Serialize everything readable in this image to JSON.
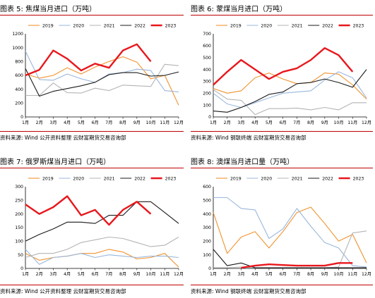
{
  "colors": {
    "2019": "#f0922e",
    "2020": "#9ab7db",
    "2021": "#b4b4b4",
    "2022": "#1a1a1a",
    "2023": "#e8171c",
    "title_rule": "#c00000"
  },
  "chart_data": [
    {
      "type": "line",
      "title": "图表 5:  焦煤当月进口（万吨）",
      "source": "资料来源:  Wind 公开资料整理 云财富期货交易咨询部",
      "categories": [
        "1月",
        "2月",
        "3月",
        "4月",
        "5月",
        "6月",
        "7月",
        "8月",
        "9月",
        "10月",
        "11月",
        "12月"
      ],
      "ylim": [
        0,
        1200
      ],
      "yticks": [
        0,
        200,
        400,
        600,
        800,
        1000,
        1200
      ],
      "series": [
        {
          "name": "2019",
          "values": [
            620,
            560,
            600,
            710,
            620,
            720,
            800,
            870,
            790,
            550,
            600,
            170
          ]
        },
        {
          "name": "2020",
          "values": [
            950,
            540,
            530,
            620,
            550,
            500,
            620,
            640,
            690,
            670,
            380,
            360
          ]
        },
        {
          "name": "2021",
          "values": [
            310,
            310,
            490,
            350,
            345,
            415,
            380,
            460,
            450,
            440,
            760,
            740
          ]
        },
        {
          "name": "2022",
          "values": [
            700,
            300,
            370,
            410,
            450,
            500,
            610,
            640,
            640,
            590,
            600,
            650
          ]
        },
        {
          "name": "2023",
          "values": [
            600,
            680,
            960,
            840,
            670,
            770,
            710,
            960,
            1050,
            800,
            null,
            null
          ]
        }
      ]
    },
    {
      "type": "line",
      "title": "图表 6:  蒙煤当月进口（万吨）",
      "source": "资料来源:  Wind 钢联终端 云财富期货交易咨询部",
      "categories": [
        "1月",
        "2月",
        "3月",
        "4月",
        "5月",
        "6月",
        "7月",
        "8月",
        "9月",
        "10月",
        "11月",
        "12月"
      ],
      "ylim": [
        0,
        700
      ],
      "yticks": [
        0,
        100,
        200,
        300,
        400,
        500,
        600,
        700
      ],
      "series": [
        {
          "name": "2019",
          "values": [
            240,
            200,
            220,
            330,
            370,
            320,
            280,
            290,
            370,
            360,
            270,
            150
          ]
        },
        {
          "name": "2020",
          "values": [
            200,
            110,
            80,
            120,
            160,
            200,
            210,
            220,
            310,
            380,
            330,
            160
          ]
        },
        {
          "name": "2021",
          "values": [
            230,
            150,
            140,
            20,
            70,
            70,
            75,
            60,
            80,
            60,
            120,
            120
          ]
        },
        {
          "name": "2022",
          "values": [
            50,
            40,
            80,
            130,
            190,
            210,
            280,
            290,
            320,
            290,
            250,
            400
          ]
        },
        {
          "name": "2023",
          "values": [
            270,
            380,
            480,
            400,
            320,
            380,
            410,
            480,
            580,
            520,
            380,
            null
          ]
        }
      ]
    },
    {
      "type": "line",
      "title": "图表 7:  俄罗斯煤当月进口（万吨）",
      "source": "资料来源:  Wind 公开资料整理 云财富期货交易咨询部",
      "categories": [
        "1月",
        "2月",
        "3月",
        "4月",
        "5月",
        "6月",
        "7月",
        "8月",
        "9月",
        "10月",
        "11月",
        "12月"
      ],
      "ylim": [
        0,
        300
      ],
      "yticks": [
        0,
        50,
        100,
        150,
        200,
        250,
        300
      ],
      "series": [
        {
          "name": "2019",
          "values": [
            55,
            30,
            40,
            45,
            55,
            55,
            70,
            60,
            35,
            40,
            55,
            5
          ]
        },
        {
          "name": "2020",
          "values": [
            70,
            15,
            40,
            45,
            55,
            40,
            50,
            45,
            40,
            45,
            45,
            40
          ]
        },
        {
          "name": "2021",
          "values": [
            40,
            55,
            55,
            70,
            95,
            105,
            115,
            110,
            95,
            80,
            85,
            115
          ]
        },
        {
          "name": "2022",
          "values": [
            100,
            125,
            145,
            170,
            170,
            165,
            195,
            195,
            245,
            245,
            205,
            165
          ]
        },
        {
          "name": "2023",
          "values": [
            235,
            200,
            225,
            265,
            195,
            215,
            160,
            215,
            245,
            200,
            null,
            null
          ]
        }
      ]
    },
    {
      "type": "line",
      "title": "图表 8:  澳煤当月进口量（万吨）",
      "source": "资料来源:  Wind 钢联终端 云财富期货交易咨询部",
      "categories": [
        "1月",
        "2月",
        "3月",
        "4月",
        "5月",
        "6月",
        "7月",
        "8月",
        "9月",
        "10月",
        "11月",
        "12月"
      ],
      "ylim": [
        0,
        600
      ],
      "yticks": [
        0,
        100,
        200,
        300,
        400,
        500,
        600
      ],
      "series": [
        {
          "name": "2019",
          "values": [
            410,
            110,
            230,
            270,
            150,
            270,
            410,
            450,
            330,
            200,
            250,
            40
          ]
        },
        {
          "name": "2020",
          "values": [
            520,
            520,
            440,
            430,
            220,
            290,
            440,
            310,
            190,
            150,
            20,
            10
          ]
        },
        {
          "name": "2021",
          "values": [
            5,
            5,
            10,
            5,
            5,
            5,
            5,
            5,
            5,
            10,
            260,
            275
          ]
        },
        {
          "name": "2022",
          "values": [
            140,
            20,
            40,
            5,
            5,
            5,
            5,
            5,
            5,
            5,
            5,
            5
          ]
        },
        {
          "name": "2023",
          "values": [
            null,
            null,
            5,
            20,
            30,
            25,
            20,
            20,
            20,
            40,
            40,
            null
          ]
        }
      ]
    }
  ]
}
